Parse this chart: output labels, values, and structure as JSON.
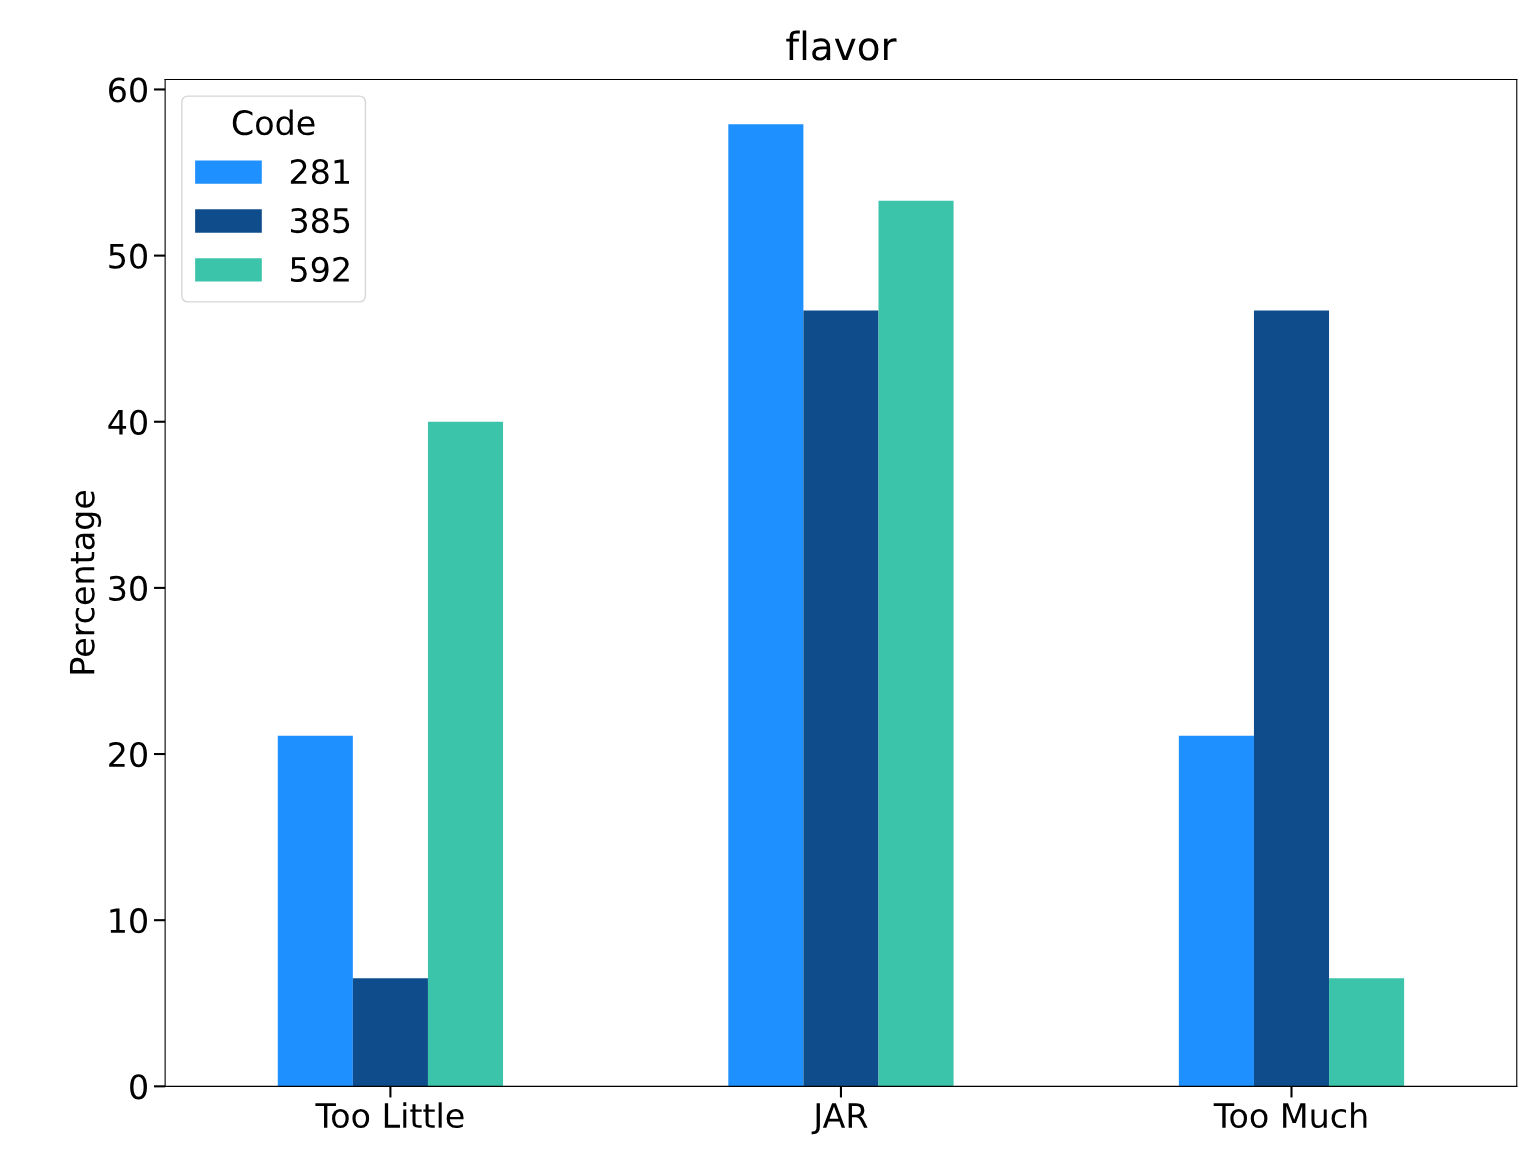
{
  "chart_data": {
    "type": "bar",
    "title": "flavor",
    "ylabel": "Percentage",
    "legend_title": "Code",
    "categories": [
      "Too Little",
      "JAR",
      "Too Much"
    ],
    "series": [
      {
        "name": "281",
        "color": "#1e90ff",
        "values": [
          21.1,
          57.9,
          21.1
        ]
      },
      {
        "name": "385",
        "color": "#0f4c8c",
        "values": [
          6.5,
          46.7,
          46.7
        ]
      },
      {
        "name": "592",
        "color": "#3cc4aa",
        "values": [
          40.0,
          53.3,
          6.5
        ]
      }
    ],
    "ylim": [
      0,
      60.6
    ],
    "yticks": [
      0,
      10,
      20,
      30,
      40,
      50,
      60
    ],
    "grid": false,
    "legend": "top left"
  }
}
